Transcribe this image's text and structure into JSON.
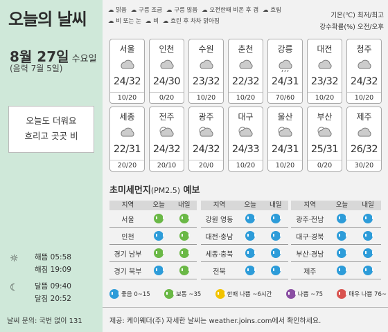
{
  "title": "오늘의 날씨",
  "date": {
    "month_day": "8월 27일",
    "weekday": "수요일",
    "lunar": "(음력 7월 5일)"
  },
  "note": [
    "오늘도 더워요",
    "흐리고 곳곳 비"
  ],
  "sun_moon": [
    {
      "icon": "sun-icon",
      "label": "해뜸",
      "time": "05:58"
    },
    {
      "icon": "",
      "label": "해짐",
      "time": "19:09"
    },
    {
      "icon": "moon-icon",
      "label": "달뜸",
      "time": "09:40"
    },
    {
      "icon": "",
      "label": "달짐",
      "time": "20:52"
    }
  ],
  "contact": "날씨 문의: 국번 없이 131",
  "legend": [
    "맑음",
    "구름 조금",
    "구름 많음",
    "오전한때 비온 후 갬",
    "흐림",
    "비 또는 눈",
    "비",
    "흐린 후 차차 맑아짐"
  ],
  "units": [
    "기온(℃) 최저/최고",
    "강수확률(%) 오전/오후"
  ],
  "cities": [
    {
      "name": "서울",
      "icon": "cloudy-icon",
      "temp": "24/32",
      "precip": "10/20"
    },
    {
      "name": "인천",
      "icon": "cloudy-icon",
      "temp": "24/30",
      "precip": "0/20"
    },
    {
      "name": "수원",
      "icon": "cloudy-icon",
      "temp": "23/32",
      "precip": "10/20"
    },
    {
      "name": "춘천",
      "icon": "cloudy-icon",
      "temp": "22/32",
      "precip": "10/20"
    },
    {
      "name": "강릉",
      "icon": "rain-icon",
      "temp": "24/31",
      "precip": "70/60"
    },
    {
      "name": "대전",
      "icon": "cloudy-icon",
      "temp": "23/32",
      "precip": "10/20"
    },
    {
      "name": "청주",
      "icon": "cloudy-icon",
      "temp": "24/32",
      "precip": "10/20"
    },
    {
      "name": "세종",
      "icon": "cloudy-icon",
      "temp": "22/31",
      "precip": "20/20"
    },
    {
      "name": "전주",
      "icon": "partly-cloudy-icon",
      "temp": "24/32",
      "precip": "20/10"
    },
    {
      "name": "광주",
      "icon": "partly-cloudy-icon",
      "temp": "24/32",
      "precip": "20/0"
    },
    {
      "name": "대구",
      "icon": "partly-cloudy-icon",
      "temp": "24/33",
      "precip": "10/20"
    },
    {
      "name": "울산",
      "icon": "partly-cloudy-icon",
      "temp": "24/31",
      "precip": "10/20"
    },
    {
      "name": "부산",
      "icon": "partly-cloudy-icon",
      "temp": "25/31",
      "precip": "0/20"
    },
    {
      "name": "제주",
      "icon": "cloudy-icon",
      "temp": "26/32",
      "precip": "30/20"
    }
  ],
  "dust": {
    "title": "초미세먼지",
    "subtitle": "(PM2.5)",
    "title_suffix": "예보",
    "headers": [
      "지역",
      "오늘",
      "내일"
    ],
    "tables": [
      [
        {
          "region": "서울",
          "today": "green",
          "tomorrow": "green"
        },
        {
          "region": "인천",
          "today": "blue",
          "tomorrow": "green"
        },
        {
          "region": "경기 남부",
          "today": "green",
          "tomorrow": "green"
        },
        {
          "region": "경기 북부",
          "today": "blue",
          "tomorrow": "green"
        }
      ],
      [
        {
          "region": "강원 영동",
          "today": "blue",
          "tomorrow": "blue"
        },
        {
          "region": "대전·충남",
          "today": "blue",
          "tomorrow": "blue"
        },
        {
          "region": "세종·충북",
          "today": "blue",
          "tomorrow": "blue"
        },
        {
          "region": "전북",
          "today": "blue",
          "tomorrow": "blue"
        }
      ],
      [
        {
          "region": "광주·전남",
          "today": "blue",
          "tomorrow": "blue"
        },
        {
          "region": "대구·경북",
          "today": "blue",
          "tomorrow": "blue"
        },
        {
          "region": "부산·경남",
          "today": "blue",
          "tomorrow": "blue"
        },
        {
          "region": "제주",
          "today": "blue",
          "tomorrow": "blue"
        }
      ]
    ],
    "legend": [
      {
        "color": "blue",
        "label": "좋음 0~15"
      },
      {
        "color": "green",
        "label": "보통 ~35"
      },
      {
        "color": "yellow",
        "label": "한때 나쁨 ~6시간"
      },
      {
        "color": "purple",
        "label": "나쁨 ~75"
      },
      {
        "color": "red",
        "label": "매우 나쁨 76~"
      }
    ]
  },
  "footer": "제공: 케이웨더(주) 자세한 날씨는 weather.joins.com에서 확인하세요."
}
